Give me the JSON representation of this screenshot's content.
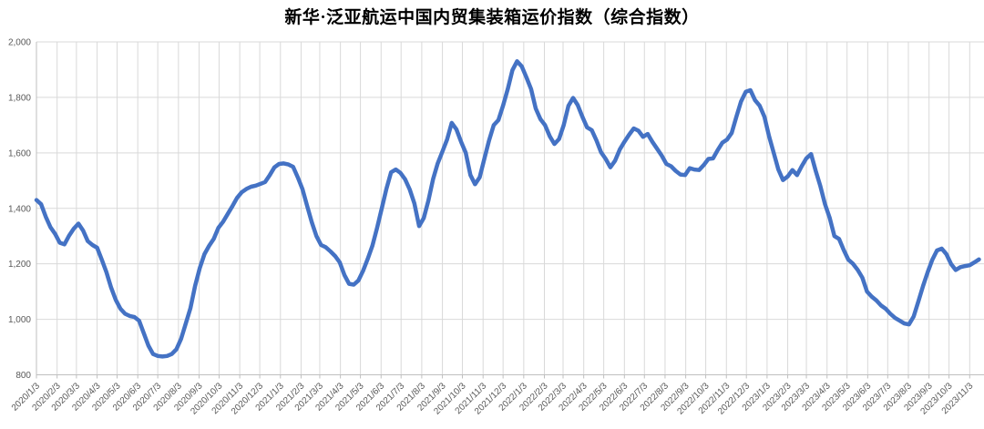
{
  "chart_data": {
    "type": "line",
    "title": "新华·泛亚航运中国内贸集装箱运价指数（综合指数）",
    "legend": "none",
    "grid": true,
    "ylim": [
      800,
      2000
    ],
    "y_tick_values": [
      800,
      1000,
      1200,
      1400,
      1600,
      1800,
      2000
    ],
    "y_tick_labels": [
      "800",
      "1,000",
      "1,200",
      "1,400",
      "1,600",
      "1,800",
      "2,000"
    ],
    "x_tick_labels": [
      "2020/1/3",
      "2020/2/3",
      "2020/3/3",
      "2020/4/3",
      "2020/5/3",
      "2020/6/3",
      "2020/7/3",
      "2020/8/3",
      "2020/9/3",
      "2020/10/3",
      "2020/11/3",
      "2020/12/3",
      "2021/1/3",
      "2021/2/3",
      "2021/3/3",
      "2021/4/3",
      "2021/5/3",
      "2021/6/3",
      "2021/7/3",
      "2021/8/3",
      "2021/9/3",
      "2021/10/3",
      "2021/11/3",
      "2021/12/3",
      "2022/1/3",
      "2022/2/3",
      "2022/3/3",
      "2022/4/3",
      "2022/5/3",
      "2022/6/3",
      "2022/7/3",
      "2022/8/3",
      "2022/9/3",
      "2022/10/3",
      "2022/11/3",
      "2022/12/3",
      "2023/1/3",
      "2023/2/3",
      "2023/3/3",
      "2023/4/3",
      "2023/5/3",
      "2023/6/3",
      "2023/7/3",
      "2023/8/3",
      "2023/9/3",
      "2023/10/3",
      "2023/11/3"
    ],
    "series": [
      {
        "name": "综合指数",
        "color": "#4472C4",
        "start_date": "2020/1/3",
        "interval_days": 7,
        "values": [
          1430,
          1415,
          1370,
          1332,
          1308,
          1276,
          1270,
          1302,
          1327,
          1345,
          1320,
          1282,
          1268,
          1258,
          1215,
          1170,
          1115,
          1070,
          1038,
          1020,
          1012,
          1008,
          995,
          950,
          905,
          875,
          868,
          866,
          868,
          875,
          892,
          930,
          985,
          1040,
          1120,
          1185,
          1235,
          1265,
          1290,
          1330,
          1352,
          1380,
          1408,
          1438,
          1458,
          1470,
          1478,
          1482,
          1488,
          1495,
          1520,
          1548,
          1560,
          1562,
          1558,
          1550,
          1512,
          1470,
          1410,
          1350,
          1300,
          1268,
          1260,
          1245,
          1228,
          1205,
          1160,
          1128,
          1125,
          1140,
          1175,
          1218,
          1265,
          1330,
          1400,
          1470,
          1530,
          1540,
          1528,
          1505,
          1468,
          1418,
          1336,
          1365,
          1428,
          1505,
          1562,
          1605,
          1648,
          1708,
          1685,
          1640,
          1600,
          1520,
          1487,
          1512,
          1580,
          1645,
          1700,
          1718,
          1770,
          1830,
          1898,
          1930,
          1912,
          1872,
          1830,
          1760,
          1722,
          1700,
          1660,
          1632,
          1650,
          1700,
          1770,
          1798,
          1772,
          1730,
          1692,
          1682,
          1645,
          1602,
          1578,
          1548,
          1572,
          1612,
          1640,
          1665,
          1688,
          1680,
          1658,
          1668,
          1640,
          1615,
          1590,
          1560,
          1552,
          1535,
          1522,
          1520,
          1545,
          1540,
          1538,
          1556,
          1578,
          1580,
          1610,
          1637,
          1648,
          1672,
          1730,
          1785,
          1820,
          1826,
          1790,
          1770,
          1730,
          1660,
          1600,
          1540,
          1502,
          1515,
          1538,
          1520,
          1552,
          1580,
          1596,
          1535,
          1480,
          1415,
          1365,
          1300,
          1290,
          1250,
          1215,
          1200,
          1178,
          1150,
          1100,
          1082,
          1068,
          1050,
          1038,
          1020,
          1005,
          995,
          985,
          982,
          1010,
          1065,
          1120,
          1170,
          1215,
          1248,
          1255,
          1235,
          1200,
          1178,
          1188,
          1192,
          1195,
          1205,
          1216
        ]
      }
    ],
    "colors": {
      "line": "#4472C4",
      "grid": "#D9D9D9",
      "axis": "#BFBFBF",
      "tick_label": "#595959",
      "title": "#000000",
      "background": "#FFFFFF"
    }
  }
}
